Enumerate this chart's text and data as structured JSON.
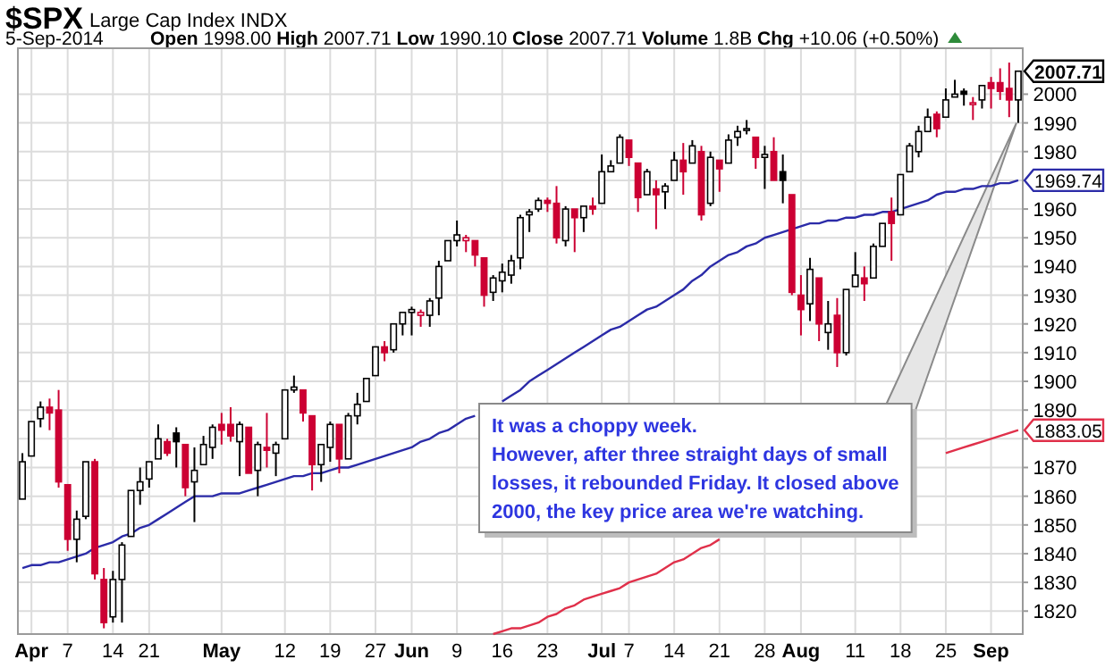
{
  "chart_data": {
    "type": "candlestick",
    "title": "$SPX",
    "subtitle": "Large Cap Index INDX",
    "annotations": [
      "5-Sep-2014",
      "Open 1998.00 High 2007.71 Low 1990.10 Close 2007.71 Volume 1.8B Chg +10.06 (+0.50%)",
      "It was a choppy week.\nHowever, after three straight days of small\nlosses, it rebounded Friday.  It closed above\n2000, the key price area we're watching.",
      "2007.71",
      "1969.74",
      "1883.05"
    ],
    "categories": [
      null,
      "Apr",
      null,
      null,
      null,
      "7",
      null,
      null,
      null,
      null,
      "14",
      null,
      null,
      null,
      "21",
      null,
      null,
      null,
      null,
      null,
      null,
      null,
      "May",
      null,
      null,
      null,
      null,
      null,
      null,
      "12",
      null,
      null,
      null,
      null,
      "19",
      null,
      null,
      null,
      null,
      "27",
      null,
      null,
      null,
      "Jun",
      null,
      null,
      null,
      null,
      "9",
      null,
      null,
      null,
      null,
      "16",
      null,
      null,
      null,
      null,
      "23",
      null,
      null,
      null,
      null,
      null,
      "Jul",
      null,
      null,
      "7",
      null,
      null,
      null,
      null,
      "14",
      null,
      null,
      null,
      null,
      "21",
      null,
      null,
      null,
      null,
      "28",
      null,
      null,
      null,
      "Aug",
      null,
      null,
      null,
      null,
      null,
      "11",
      null,
      null,
      null,
      null,
      "18",
      null,
      null,
      null,
      null,
      "25",
      null,
      null,
      null,
      null,
      "Sep",
      null,
      null,
      null
    ],
    "ohlc": [
      [
        1859,
        1875,
        1859,
        1872
      ],
      [
        1874,
        1886,
        1874,
        1886
      ],
      [
        1887,
        1893,
        1884,
        1891
      ],
      [
        1891,
        1894,
        1883,
        1889
      ],
      [
        1890,
        1897,
        1863,
        1865
      ],
      [
        1864,
        1864,
        1841,
        1845
      ],
      [
        1845,
        1855,
        1837,
        1852
      ],
      [
        1853,
        1872,
        1852,
        1872
      ],
      [
        1872,
        1873,
        1831,
        1833
      ],
      [
        1831,
        1835,
        1814,
        1816
      ],
      [
        1818,
        1834,
        1816,
        1831
      ],
      [
        1831,
        1844,
        1816,
        1843
      ],
      [
        1846,
        1862,
        1846,
        1862
      ],
      [
        1862,
        1870,
        1857,
        1865
      ],
      [
        1866,
        1872,
        1863,
        1872
      ],
      [
        1873,
        1885,
        1873,
        1880
      ],
      [
        1879,
        1880,
        1874,
        1875
      ],
      [
        1882,
        1884,
        1870,
        1879
      ],
      [
        1878,
        1878,
        1860,
        1863
      ],
      [
        1865,
        1877,
        1851,
        1869
      ],
      [
        1871,
        1881,
        1871,
        1878
      ],
      [
        1877,
        1885,
        1873,
        1884
      ],
      [
        1885,
        1889,
        1878,
        1883
      ],
      [
        1885,
        1891,
        1879,
        1881
      ],
      [
        1879,
        1886,
        1867,
        1885
      ],
      [
        1884,
        1884,
        1868,
        1868
      ],
      [
        1869,
        1879,
        1860,
        1878
      ],
      [
        1877,
        1889,
        1870,
        1876
      ],
      [
        1875,
        1879,
        1867,
        1878
      ],
      [
        1880,
        1897,
        1880,
        1897
      ],
      [
        1897,
        1902,
        1896,
        1898
      ],
      [
        1897,
        1897,
        1886,
        1889
      ],
      [
        1888,
        1888,
        1862,
        1871
      ],
      [
        1871,
        1878,
        1865,
        1878
      ],
      [
        1877,
        1886,
        1872,
        1885
      ],
      [
        1885,
        1885,
        1868,
        1873
      ],
      [
        1873,
        1889,
        1873,
        1888
      ],
      [
        1888,
        1896,
        1885,
        1892
      ],
      [
        1893,
        1901,
        1893,
        1901
      ],
      [
        1902,
        1912,
        1902,
        1912
      ],
      [
        1912,
        1914,
        1907,
        1910
      ],
      [
        1911,
        1920,
        1910,
        1920
      ],
      [
        1920,
        1924,
        1916,
        1924
      ],
      [
        1924,
        1926,
        1916,
        1925
      ],
      [
        1923,
        1925,
        1919,
        1924
      ],
      [
        1923,
        1929,
        1919,
        1928
      ],
      [
        1929,
        1942,
        1923,
        1940
      ],
      [
        1942,
        1949,
        1942,
        1949
      ],
      [
        1949,
        1956,
        1947,
        1951
      ],
      [
        1949,
        1951,
        1945,
        1950
      ],
      [
        1949,
        1949,
        1940,
        1944
      ],
      [
        1943,
        1943,
        1926,
        1930
      ],
      [
        1931,
        1937,
        1928,
        1936
      ],
      [
        1935,
        1941,
        1931,
        1938
      ],
      [
        1937,
        1944,
        1934,
        1942
      ],
      [
        1943,
        1958,
        1939,
        1957
      ],
      [
        1958,
        1960,
        1952,
        1959
      ],
      [
        1960,
        1964,
        1959,
        1963
      ],
      [
        1963,
        1964,
        1959,
        1962
      ],
      [
        1962,
        1968,
        1948,
        1950
      ],
      [
        1949,
        1961,
        1947,
        1960
      ],
      [
        1960,
        1960,
        1945,
        1957
      ],
      [
        1957,
        1961,
        1952,
        1961
      ],
      [
        1961,
        1964,
        1958,
        1960
      ],
      [
        1962,
        1979,
        1962,
        1973
      ],
      [
        1973,
        1977,
        1973,
        1975
      ],
      [
        1976,
        1986,
        1976,
        1985
      ],
      [
        1984,
        1984,
        1975,
        1978
      ],
      [
        1976,
        1976,
        1959,
        1964
      ],
      [
        1965,
        1974,
        1965,
        1973
      ],
      [
        1967,
        1970,
        1953,
        1965
      ],
      [
        1966,
        1969,
        1960,
        1968
      ],
      [
        1970,
        1980,
        1970,
        1977
      ],
      [
        1977,
        1983,
        1965,
        1973
      ],
      [
        1976,
        1984,
        1976,
        1982
      ],
      [
        1980,
        1982,
        1956,
        1958
      ],
      [
        1962,
        1980,
        1961,
        1978
      ],
      [
        1977,
        1977,
        1966,
        1974
      ],
      [
        1976,
        1986,
        1976,
        1984
      ],
      [
        1985,
        1989,
        1982,
        1987
      ],
      [
        1988,
        1991,
        1986,
        1988
      ],
      [
        1985,
        1985,
        1974,
        1978
      ],
      [
        1978,
        1982,
        1967,
        1979
      ],
      [
        1980,
        1985,
        1970,
        1970
      ],
      [
        1973,
        1979,
        1962,
        1970
      ],
      [
        1965,
        1965,
        1930,
        1931
      ],
      [
        1930,
        1937,
        1916,
        1925
      ],
      [
        1927,
        1943,
        1921,
        1939
      ],
      [
        1936,
        1936,
        1914,
        1920
      ],
      [
        1917,
        1928,
        1911,
        1920
      ],
      [
        1923,
        1929,
        1905,
        1910
      ],
      [
        1910,
        1932,
        1909,
        1932
      ],
      [
        1933,
        1945,
        1933,
        1937
      ],
      [
        1936,
        1940,
        1928,
        1934
      ],
      [
        1936,
        1948,
        1936,
        1947
      ],
      [
        1947,
        1955,
        1947,
        1955
      ],
      [
        1959,
        1964,
        1942,
        1955
      ],
      [
        1958,
        1972,
        1958,
        1972
      ],
      [
        1973,
        1983,
        1973,
        1982
      ],
      [
        1980,
        1989,
        1978,
        1987
      ],
      [
        1987,
        1995,
        1987,
        1992
      ],
      [
        1993,
        1994,
        1985,
        1988
      ],
      [
        1992,
        2002,
        1992,
        1998
      ],
      [
        1999,
        2005,
        1999,
        2000
      ],
      [
        2001,
        2002,
        1996,
        2000
      ],
      [
        1997,
        1999,
        1991,
        1997
      ],
      [
        1998,
        2003,
        1995,
        2003
      ],
      [
        2004,
        2006,
        1995,
        2002
      ],
      [
        2004,
        2009,
        1998,
        2001
      ],
      [
        2002,
        2011,
        1992,
        1998
      ],
      [
        1998,
        2008,
        1990,
        2008
      ]
    ],
    "colors": [
      "#000000",
      "#000000",
      "#000000",
      "#cc0033",
      "#cc0033",
      "#cc0033",
      "#000000",
      "#000000",
      "#cc0033",
      "#cc0033",
      "#000000",
      "#000000",
      "#000000",
      "#000000",
      "#000000",
      "#000000",
      "#cc0033",
      "#000000",
      "#cc0033",
      "#000000",
      "#000000",
      "#000000",
      "#cc0033",
      "#cc0033",
      "#000000",
      "#cc0033",
      "#000000",
      "#cc0033",
      "#000000",
      "#000000",
      "#000000",
      "#cc0033",
      "#cc0033",
      "#000000",
      "#000000",
      "#cc0033",
      "#000000",
      "#000000",
      "#000000",
      "#000000",
      "#cc0033",
      "#000000",
      "#000000",
      "#000000",
      "#cc0033",
      "#000000",
      "#000000",
      "#000000",
      "#000000",
      "#cc0033",
      "#cc0033",
      "#cc0033",
      "#000000",
      "#000000",
      "#000000",
      "#000000",
      "#000000",
      "#000000",
      "#cc0033",
      "#cc0033",
      "#000000",
      "#cc0033",
      "#000000",
      "#cc0033",
      "#000000",
      "#000000",
      "#000000",
      "#cc0033",
      "#cc0033",
      "#000000",
      "#cc0033",
      "#000000",
      "#000000",
      "#cc0033",
      "#000000",
      "#cc0033",
      "#000000",
      "#cc0033",
      "#000000",
      "#000000",
      "#000000",
      "#cc0033",
      "#000000",
      "#cc0033",
      "#000000",
      "#cc0033",
      "#cc0033",
      "#000000",
      "#cc0033",
      "#000000",
      "#cc0033",
      "#000000",
      "#000000",
      "#cc0033",
      "#000000",
      "#000000",
      "#cc0033",
      "#000000",
      "#000000",
      "#000000",
      "#000000",
      "#cc0033",
      "#000000",
      "#000000",
      "#000000",
      "#cc0033",
      "#000000",
      "#cc0033",
      "#cc0033",
      "#cc0033",
      "#000000"
    ],
    "series": [
      {
        "type": "line",
        "color": "#2b2ba8",
        "values": [
          1835,
          1836,
          1836,
          1837,
          1837,
          1838,
          1839,
          1840,
          1842,
          1843,
          1844,
          1846,
          1847,
          1849,
          1850,
          1852,
          1854,
          1856,
          1858,
          1860,
          1860,
          1860,
          1861,
          1861,
          1861,
          1862,
          1863,
          1864,
          1865,
          1866,
          1867,
          1867,
          1868,
          1868,
          1869,
          1870,
          1870,
          1871,
          1872,
          1873,
          1874,
          1875,
          1876,
          1877,
          1879,
          1880,
          1882,
          1883,
          1885,
          1887,
          1888,
          null,
          null,
          1893,
          1895,
          1897,
          1900,
          1902,
          1904,
          1906,
          1908,
          1910,
          1912,
          1914,
          1916,
          1918,
          1919,
          1921,
          1923,
          1925,
          1926,
          1928,
          1930,
          1932,
          1935,
          1937,
          1940,
          1942,
          1944,
          1945,
          1947,
          1948,
          1950,
          1951,
          1952,
          1953,
          1954,
          1955,
          1955,
          1956,
          1956,
          1957,
          1957,
          1958,
          1958,
          1959,
          1959,
          1960,
          1961,
          1962,
          1963,
          1965,
          1966,
          1966,
          1967,
          1967,
          1968,
          1968,
          1969,
          1969,
          1970
        ]
      },
      {
        "type": "line",
        "color": "#e0304a",
        "values": [
          null,
          null,
          null,
          null,
          null,
          null,
          null,
          null,
          null,
          null,
          null,
          null,
          null,
          null,
          null,
          null,
          null,
          null,
          null,
          null,
          null,
          null,
          null,
          null,
          null,
          null,
          null,
          null,
          null,
          null,
          null,
          null,
          null,
          null,
          null,
          null,
          null,
          null,
          null,
          null,
          null,
          null,
          null,
          null,
          null,
          null,
          null,
          null,
          null,
          null,
          null,
          null,
          1812,
          1813,
          1814,
          1814,
          1815,
          1816,
          1818,
          1819,
          1821,
          1822,
          1824,
          1825,
          1826,
          1827,
          1828,
          1830,
          1831,
          1832,
          1833,
          1835,
          1837,
          1838,
          1840,
          1842,
          1843,
          1845,
          null,
          null,
          null,
          null,
          null,
          null,
          null,
          null,
          null,
          null,
          null,
          null,
          null,
          null,
          null,
          null,
          null,
          null,
          null,
          null,
          null,
          null,
          null,
          null,
          1875,
          1876,
          1877,
          1878,
          1879,
          1880,
          1881,
          1882,
          1883
        ]
      }
    ],
    "ylim": [
      1812,
      2016
    ],
    "yticks": [
      1820,
      1830,
      1840,
      1850,
      1860,
      1870,
      {
        "value": 1880,
        "label": null
      },
      1890,
      1900,
      1910,
      1920,
      1930,
      1940,
      1950,
      1960,
      {
        "value": 1970,
        "label": null
      },
      1980,
      1990,
      2000
    ],
    "grid": true
  }
}
